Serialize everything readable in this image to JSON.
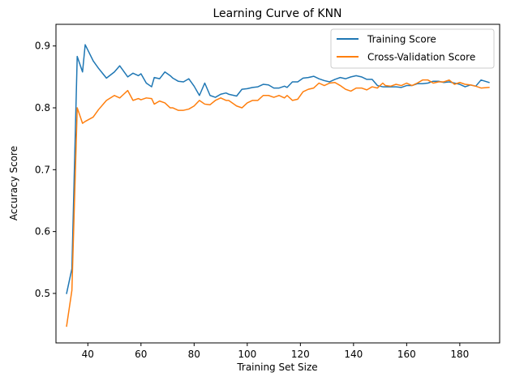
{
  "chart_data": {
    "type": "line",
    "title": "Learning Curve of KNN",
    "xlabel": "Training Set Size",
    "ylabel": "Accuracy Score",
    "xlim": [
      28,
      195
    ],
    "ylim": [
      0.42,
      0.935
    ],
    "xticks": [
      40,
      60,
      80,
      100,
      120,
      140,
      160,
      180
    ],
    "yticks": [
      0.5,
      0.6,
      0.7,
      0.8,
      0.9
    ],
    "ytick_labels": [
      "0.5",
      "0.6",
      "0.7",
      "0.8",
      "0.9"
    ],
    "legend_position": "top-right",
    "grid": false,
    "x": [
      32,
      34,
      36,
      38,
      39,
      42,
      44,
      47,
      50,
      52,
      53,
      55,
      57,
      59,
      60,
      62,
      64,
      65,
      67,
      69,
      71,
      72,
      74,
      76,
      78,
      80,
      82,
      84,
      86,
      88,
      90,
      92,
      93,
      96,
      98,
      100,
      102,
      104,
      106,
      108,
      110,
      112,
      114,
      115,
      117,
      119,
      121,
      123,
      125,
      127,
      129,
      131,
      133,
      135,
      137,
      139,
      141,
      143,
      145,
      147,
      149,
      151,
      152,
      154,
      156,
      158,
      160,
      162,
      164,
      166,
      168,
      170,
      172,
      174,
      176,
      178,
      180,
      182,
      184,
      186,
      188,
      191
    ],
    "series": [
      {
        "name": "Training Score",
        "color": "#1f77b4",
        "values": [
          0.5,
          0.54,
          0.883,
          0.858,
          0.902,
          0.876,
          0.864,
          0.848,
          0.858,
          0.868,
          0.862,
          0.85,
          0.856,
          0.852,
          0.855,
          0.84,
          0.834,
          0.849,
          0.847,
          0.858,
          0.852,
          0.848,
          0.843,
          0.842,
          0.847,
          0.835,
          0.82,
          0.84,
          0.82,
          0.817,
          0.822,
          0.824,
          0.822,
          0.819,
          0.83,
          0.831,
          0.833,
          0.834,
          0.838,
          0.837,
          0.832,
          0.832,
          0.835,
          0.833,
          0.842,
          0.842,
          0.848,
          0.849,
          0.851,
          0.847,
          0.844,
          0.842,
          0.846,
          0.849,
          0.847,
          0.85,
          0.852,
          0.85,
          0.846,
          0.846,
          0.836,
          0.834,
          0.834,
          0.834,
          0.834,
          0.833,
          0.836,
          0.836,
          0.839,
          0.839,
          0.84,
          0.843,
          0.843,
          0.841,
          0.842,
          0.84,
          0.838,
          0.834,
          0.837,
          0.835,
          0.845,
          0.841
        ]
      },
      {
        "name": "Cross-Validation Score",
        "color": "#ff7f0e",
        "values": [
          0.447,
          0.505,
          0.8,
          0.775,
          0.778,
          0.785,
          0.797,
          0.812,
          0.82,
          0.816,
          0.82,
          0.828,
          0.812,
          0.815,
          0.813,
          0.816,
          0.815,
          0.806,
          0.811,
          0.808,
          0.8,
          0.8,
          0.796,
          0.796,
          0.798,
          0.803,
          0.812,
          0.806,
          0.805,
          0.812,
          0.816,
          0.812,
          0.812,
          0.803,
          0.8,
          0.808,
          0.812,
          0.812,
          0.82,
          0.82,
          0.817,
          0.82,
          0.816,
          0.82,
          0.812,
          0.814,
          0.826,
          0.83,
          0.832,
          0.84,
          0.836,
          0.84,
          0.841,
          0.836,
          0.83,
          0.827,
          0.832,
          0.832,
          0.829,
          0.834,
          0.832,
          0.84,
          0.836,
          0.835,
          0.838,
          0.836,
          0.84,
          0.836,
          0.84,
          0.845,
          0.845,
          0.84,
          0.842,
          0.842,
          0.845,
          0.838,
          0.841,
          0.838,
          0.837,
          0.835,
          0.832,
          0.833
        ]
      }
    ]
  }
}
